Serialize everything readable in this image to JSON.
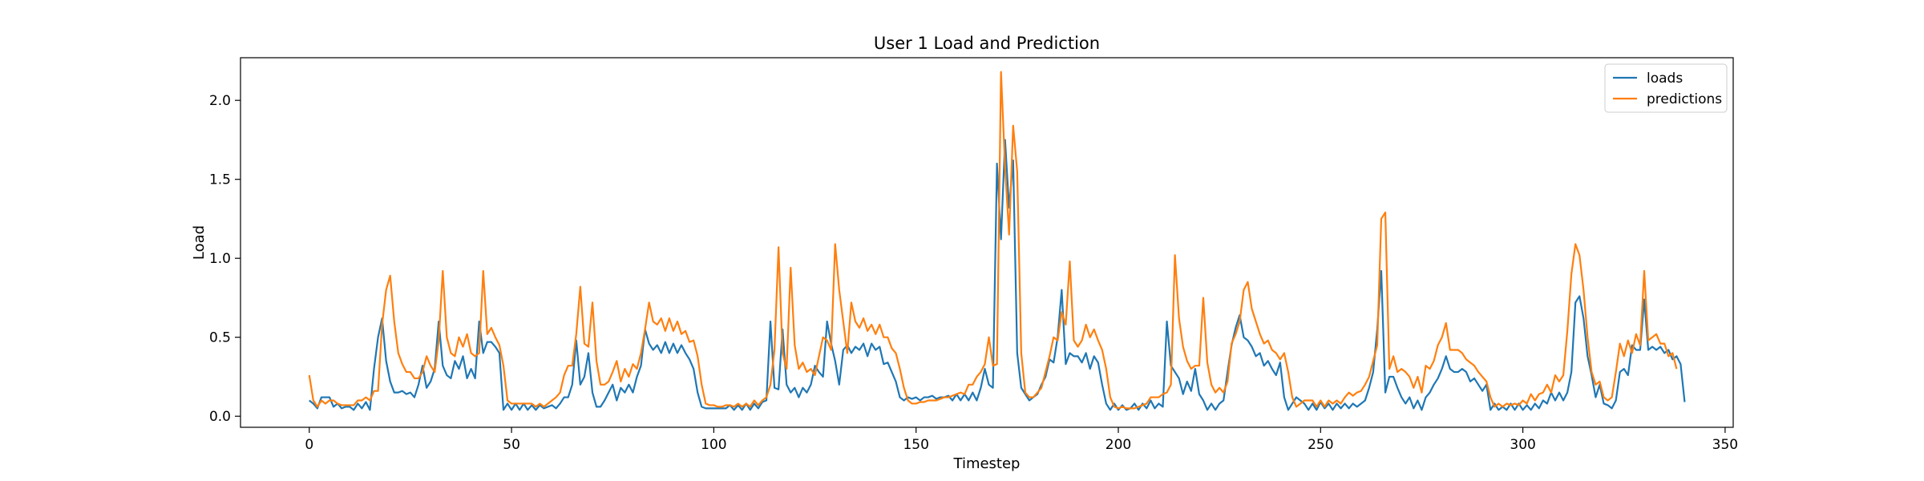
{
  "chart_data": {
    "type": "line",
    "title": "User 1 Load and Prediction",
    "xlabel": "Timestep",
    "ylabel": "Load",
    "xlim": [
      -17,
      352
    ],
    "ylim": [
      -0.07,
      2.27
    ],
    "xticks": [
      0,
      50,
      100,
      150,
      200,
      250,
      300,
      350
    ],
    "yticks": [
      0.0,
      0.5,
      1.0,
      1.5,
      2.0
    ],
    "xtick_labels": [
      "0",
      "50",
      "100",
      "150",
      "200",
      "250",
      "300",
      "350"
    ],
    "ytick_labels": [
      "0.0",
      "0.5",
      "1.0",
      "1.5",
      "2.0"
    ],
    "grid": false,
    "legend_position": "top-right",
    "x_start": 0,
    "series": [
      {
        "name": "loads",
        "color": "#1f77b4",
        "values": [
          0.1,
          0.08,
          0.05,
          0.12,
          0.12,
          0.12,
          0.06,
          0.08,
          0.05,
          0.06,
          0.06,
          0.04,
          0.08,
          0.05,
          0.09,
          0.04,
          0.3,
          0.5,
          0.62,
          0.35,
          0.22,
          0.15,
          0.15,
          0.16,
          0.14,
          0.15,
          0.12,
          0.2,
          0.32,
          0.18,
          0.22,
          0.3,
          0.6,
          0.32,
          0.26,
          0.24,
          0.35,
          0.3,
          0.38,
          0.24,
          0.3,
          0.24,
          0.6,
          0.4,
          0.47,
          0.47,
          0.44,
          0.4,
          0.04,
          0.08,
          0.04,
          0.08,
          0.04,
          0.08,
          0.04,
          0.07,
          0.04,
          0.07,
          0.05,
          0.06,
          0.07,
          0.05,
          0.08,
          0.12,
          0.12,
          0.2,
          0.48,
          0.2,
          0.25,
          0.4,
          0.15,
          0.06,
          0.06,
          0.1,
          0.15,
          0.2,
          0.1,
          0.18,
          0.15,
          0.2,
          0.15,
          0.25,
          0.32,
          0.55,
          0.46,
          0.42,
          0.45,
          0.4,
          0.47,
          0.4,
          0.46,
          0.4,
          0.45,
          0.4,
          0.36,
          0.3,
          0.15,
          0.06,
          0.05,
          0.05,
          0.05,
          0.05,
          0.05,
          0.05,
          0.07,
          0.04,
          0.07,
          0.04,
          0.08,
          0.04,
          0.08,
          0.05,
          0.09,
          0.1,
          0.6,
          0.18,
          0.17,
          0.55,
          0.2,
          0.15,
          0.18,
          0.12,
          0.18,
          0.15,
          0.2,
          0.32,
          0.28,
          0.25,
          0.6,
          0.46,
          0.35,
          0.2,
          0.42,
          0.45,
          0.4,
          0.44,
          0.42,
          0.46,
          0.38,
          0.46,
          0.42,
          0.44,
          0.33,
          0.34,
          0.28,
          0.22,
          0.12,
          0.1,
          0.12,
          0.11,
          0.12,
          0.1,
          0.12,
          0.12,
          0.13,
          0.11,
          0.12,
          0.12,
          0.13,
          0.1,
          0.14,
          0.1,
          0.14,
          0.1,
          0.15,
          0.1,
          0.18,
          0.3,
          0.2,
          0.18,
          1.6,
          1.12,
          1.75,
          1.32,
          1.62,
          0.4,
          0.18,
          0.14,
          0.1,
          0.12,
          0.14,
          0.2,
          0.25,
          0.36,
          0.34,
          0.5,
          0.8,
          0.33,
          0.4,
          0.38,
          0.38,
          0.34,
          0.4,
          0.3,
          0.38,
          0.34,
          0.2,
          0.08,
          0.04,
          0.08,
          0.04,
          0.07,
          0.04,
          0.05,
          0.08,
          0.04,
          0.08,
          0.05,
          0.1,
          0.05,
          0.08,
          0.06,
          0.6,
          0.32,
          0.28,
          0.24,
          0.14,
          0.22,
          0.16,
          0.3,
          0.14,
          0.1,
          0.04,
          0.08,
          0.04,
          0.08,
          0.1,
          0.28,
          0.45,
          0.56,
          0.64,
          0.5,
          0.48,
          0.44,
          0.38,
          0.4,
          0.32,
          0.35,
          0.3,
          0.26,
          0.34,
          0.12,
          0.04,
          0.08,
          0.12,
          0.1,
          0.08,
          0.04,
          0.08,
          0.04,
          0.09,
          0.05,
          0.08,
          0.04,
          0.08,
          0.05,
          0.08,
          0.05,
          0.08,
          0.06,
          0.08,
          0.1,
          0.18,
          0.28,
          0.55,
          0.92,
          0.15,
          0.25,
          0.25,
          0.18,
          0.12,
          0.08,
          0.12,
          0.05,
          0.1,
          0.04,
          0.12,
          0.15,
          0.2,
          0.24,
          0.3,
          0.38,
          0.3,
          0.28,
          0.28,
          0.3,
          0.28,
          0.22,
          0.24,
          0.2,
          0.16,
          0.2,
          0.04,
          0.08,
          0.04,
          0.06,
          0.04,
          0.08,
          0.04,
          0.08,
          0.04,
          0.07,
          0.04,
          0.08,
          0.05,
          0.1,
          0.08,
          0.15,
          0.1,
          0.15,
          0.1,
          0.15,
          0.28,
          0.72,
          0.76,
          0.62,
          0.38,
          0.26,
          0.12,
          0.2,
          0.08,
          0.07,
          0.05,
          0.1,
          0.28,
          0.3,
          0.26,
          0.45,
          0.42,
          0.42,
          0.74,
          0.42,
          0.44,
          0.42,
          0.44,
          0.4,
          0.42,
          0.36,
          0.38,
          0.33,
          0.09
        ]
      },
      {
        "name": "predictions",
        "color": "#ff7f0e",
        "values": [
          0.26,
          0.1,
          0.06,
          0.1,
          0.08,
          0.1,
          0.1,
          0.08,
          0.07,
          0.07,
          0.07,
          0.07,
          0.1,
          0.1,
          0.12,
          0.1,
          0.16,
          0.16,
          0.58,
          0.8,
          0.89,
          0.6,
          0.4,
          0.33,
          0.28,
          0.28,
          0.24,
          0.24,
          0.28,
          0.38,
          0.32,
          0.28,
          0.48,
          0.92,
          0.5,
          0.4,
          0.38,
          0.5,
          0.44,
          0.52,
          0.4,
          0.38,
          0.4,
          0.92,
          0.52,
          0.56,
          0.5,
          0.45,
          0.32,
          0.1,
          0.08,
          0.08,
          0.08,
          0.08,
          0.08,
          0.08,
          0.06,
          0.08,
          0.06,
          0.08,
          0.1,
          0.12,
          0.15,
          0.26,
          0.32,
          0.32,
          0.52,
          0.82,
          0.46,
          0.44,
          0.72,
          0.35,
          0.2,
          0.2,
          0.22,
          0.28,
          0.35,
          0.22,
          0.3,
          0.25,
          0.33,
          0.3,
          0.4,
          0.55,
          0.72,
          0.6,
          0.58,
          0.62,
          0.54,
          0.62,
          0.54,
          0.6,
          0.52,
          0.54,
          0.47,
          0.48,
          0.38,
          0.2,
          0.08,
          0.07,
          0.07,
          0.06,
          0.06,
          0.07,
          0.07,
          0.06,
          0.08,
          0.06,
          0.08,
          0.06,
          0.1,
          0.07,
          0.1,
          0.12,
          0.2,
          0.42,
          1.07,
          0.4,
          0.3,
          0.94,
          0.45,
          0.3,
          0.34,
          0.28,
          0.3,
          0.26,
          0.38,
          0.5,
          0.48,
          0.42,
          1.09,
          0.8,
          0.6,
          0.4,
          0.72,
          0.6,
          0.56,
          0.62,
          0.54,
          0.58,
          0.52,
          0.58,
          0.5,
          0.5,
          0.43,
          0.4,
          0.3,
          0.18,
          0.1,
          0.08,
          0.08,
          0.09,
          0.09,
          0.1,
          0.1,
          0.1,
          0.11,
          0.12,
          0.12,
          0.13,
          0.14,
          0.15,
          0.14,
          0.2,
          0.2,
          0.25,
          0.28,
          0.33,
          0.5,
          0.32,
          0.33,
          2.18,
          1.58,
          1.15,
          1.84,
          1.55,
          0.4,
          0.15,
          0.12,
          0.12,
          0.15,
          0.18,
          0.28,
          0.38,
          0.5,
          0.48,
          0.66,
          0.58,
          0.98,
          0.48,
          0.44,
          0.48,
          0.58,
          0.5,
          0.55,
          0.48,
          0.42,
          0.3,
          0.12,
          0.06,
          0.05,
          0.06,
          0.05,
          0.05,
          0.05,
          0.06,
          0.07,
          0.08,
          0.12,
          0.12,
          0.12,
          0.14,
          0.15,
          0.2,
          1.02,
          0.62,
          0.44,
          0.35,
          0.3,
          0.32,
          0.32,
          0.75,
          0.34,
          0.2,
          0.15,
          0.18,
          0.15,
          0.22,
          0.46,
          0.52,
          0.6,
          0.8,
          0.85,
          0.68,
          0.6,
          0.52,
          0.46,
          0.48,
          0.42,
          0.4,
          0.36,
          0.4,
          0.28,
          0.12,
          0.06,
          0.08,
          0.1,
          0.1,
          0.1,
          0.06,
          0.1,
          0.06,
          0.1,
          0.08,
          0.1,
          0.08,
          0.12,
          0.15,
          0.13,
          0.15,
          0.16,
          0.2,
          0.25,
          0.35,
          0.45,
          1.25,
          1.29,
          0.3,
          0.38,
          0.28,
          0.3,
          0.28,
          0.25,
          0.18,
          0.25,
          0.15,
          0.32,
          0.3,
          0.35,
          0.45,
          0.5,
          0.59,
          0.42,
          0.42,
          0.42,
          0.4,
          0.36,
          0.34,
          0.32,
          0.28,
          0.25,
          0.22,
          0.12,
          0.06,
          0.08,
          0.06,
          0.08,
          0.07,
          0.08,
          0.07,
          0.1,
          0.08,
          0.14,
          0.1,
          0.14,
          0.15,
          0.2,
          0.15,
          0.26,
          0.22,
          0.26,
          0.54,
          0.9,
          1.09,
          1.02,
          0.8,
          0.5,
          0.28,
          0.2,
          0.22,
          0.12,
          0.1,
          0.12,
          0.28,
          0.46,
          0.38,
          0.48,
          0.4,
          0.52,
          0.45,
          0.92,
          0.48,
          0.5,
          0.52,
          0.46,
          0.46,
          0.38,
          0.4,
          0.3
        ]
      }
    ]
  }
}
